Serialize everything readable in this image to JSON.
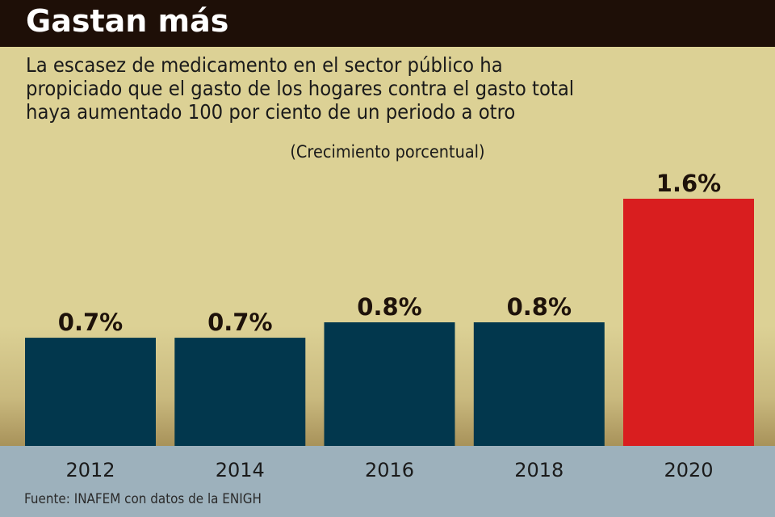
{
  "header": {
    "title": "Gastan más",
    "subtitle": "La escasez de medicamento en el sector público ha\npropiciado que el gasto de los hogares contra el gasto total\nhaya aumentado 100 por ciento de un periodo a otro",
    "units": "(Crecimiento porcentual)"
  },
  "footer": {
    "source": "Fuente: INAFEM con datos de la ENIGH"
  },
  "colors": {
    "title_bg": "#1e0f07",
    "background": "#dcd195",
    "bar_default": "#02374d",
    "bar_highlight": "#d91e1f",
    "axis_band": "#9db1bc"
  },
  "chart_data": {
    "type": "bar",
    "title": "Gastan más",
    "subtitle": "(Crecimiento porcentual)",
    "xlabel": "",
    "ylabel": "",
    "categories": [
      "2012",
      "2014",
      "2016",
      "2018",
      "2020"
    ],
    "values": [
      0.7,
      0.7,
      0.8,
      0.8,
      1.6
    ],
    "labels": [
      "0.7%",
      "0.7%",
      "0.8%",
      "0.8%",
      "1.6%"
    ],
    "highlight": [
      false,
      false,
      false,
      false,
      true
    ],
    "ylim": [
      0,
      1.6
    ],
    "grid": false,
    "legend": "none"
  }
}
